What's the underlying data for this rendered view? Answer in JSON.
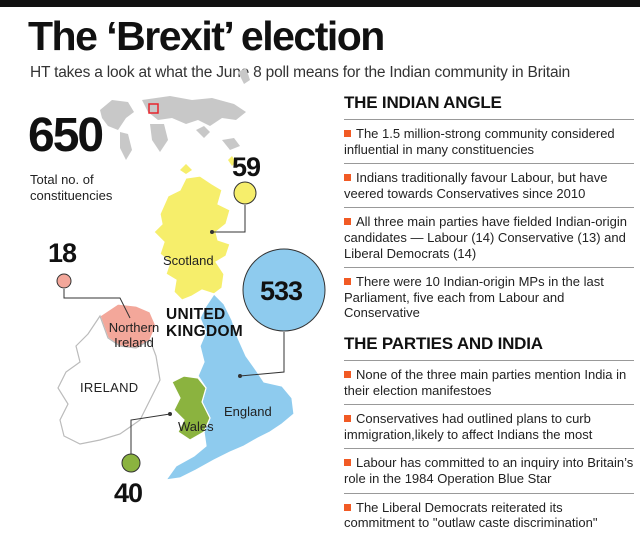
{
  "header": {
    "title": "The ‘Brexit’ election",
    "subtitle": "HT takes a look at what the June 8 poll means for the Indian community in Britain"
  },
  "map": {
    "total_constituencies": "650",
    "total_caption": "Total no. of constituencies",
    "regions": {
      "scotland": {
        "label": "Scotland",
        "seats": "59",
        "color": "#f6ee6b"
      },
      "northern_ireland": {
        "label": "Northern Ireland",
        "seats": "18",
        "color": "#f3a79a"
      },
      "england": {
        "label": "England",
        "seats": "533",
        "color": "#8ecbee"
      },
      "wales": {
        "label": "Wales",
        "seats": "40",
        "color": "#8bb33f"
      },
      "ireland": {
        "label": "IRELAND",
        "color": "#ffffff"
      }
    },
    "country_label": "UNITED KINGDOM"
  },
  "indian_angle": {
    "title": "THE INDIAN ANGLE",
    "bullets": [
      "The 1.5 million-strong community considered influential in many constituencies",
      "Indians traditionally favour Labour, but have veered towards Conservatives since 2010",
      "All three main parties have fielded Indian-origin candidates — Labour (14) Conservative (13) and Liberal Democrats (14)",
      "There were 10 Indian-origin MPs in the last Parliament, five each from Labour and Conservative"
    ]
  },
  "parties_india": {
    "title": "THE PARTIES AND INDIA",
    "bullets": [
      "None of the three main parties mention India in their election manifestoes",
      "Conservatives had outlined plans to curb immigration,likely to affect Indians the most",
      "Labour has committed to an inquiry into Britain’s role in the 1984 Operation Blue Star",
      "The Liberal Democrats reiterated its commitment to \"outlaw caste discrimination\""
    ]
  },
  "colors": {
    "bullet": "#f15a24",
    "world_map": "#c8c8c8",
    "locator": "#e8242c"
  }
}
